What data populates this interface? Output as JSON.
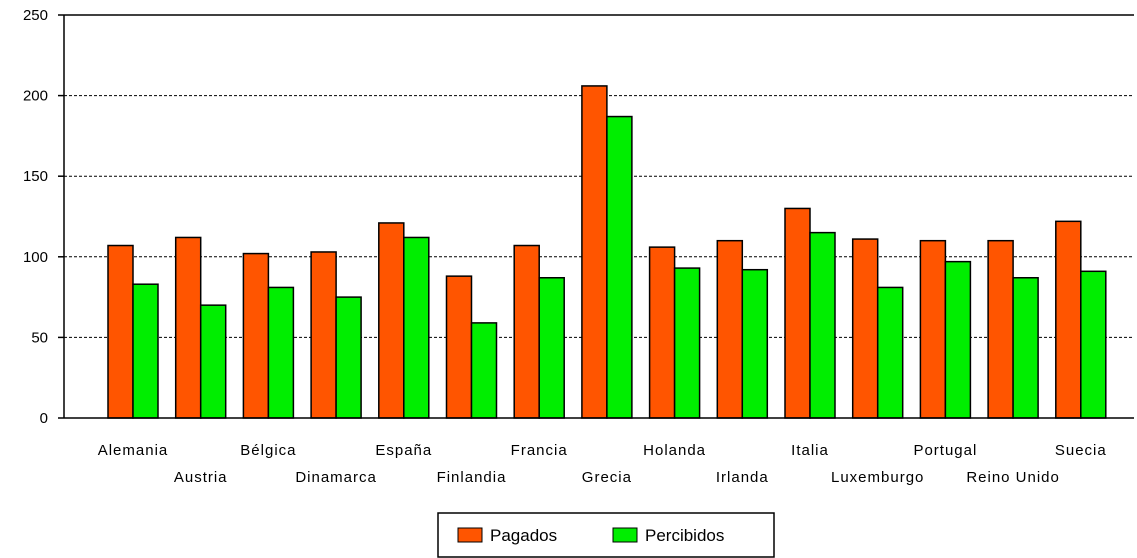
{
  "chart_data": {
    "type": "bar",
    "title": "",
    "xlabel": "",
    "ylabel": "",
    "ylim": [
      0,
      250
    ],
    "yticks": [
      0,
      50,
      100,
      150,
      200,
      250
    ],
    "grid": true,
    "legend_position": "bottom-center",
    "categories": [
      "Alemania",
      "Austria",
      "Bélgica",
      "Dinamarca",
      "España",
      "Finlandia",
      "Francia",
      "Grecia",
      "Holanda",
      "Irlanda",
      "Italia",
      "Luxemburgo",
      "Portugal",
      "Reino Unido",
      "Suecia"
    ],
    "series": [
      {
        "name": "Pagados",
        "color": "#ff5500",
        "values": [
          107,
          112,
          102,
          103,
          121,
          88,
          107,
          206,
          106,
          110,
          130,
          111,
          110,
          110,
          122
        ]
      },
      {
        "name": "Percibidos",
        "color": "#00ee00",
        "values": [
          83,
          70,
          81,
          75,
          112,
          59,
          87,
          187,
          93,
          92,
          115,
          81,
          97,
          87,
          91
        ]
      }
    ]
  }
}
